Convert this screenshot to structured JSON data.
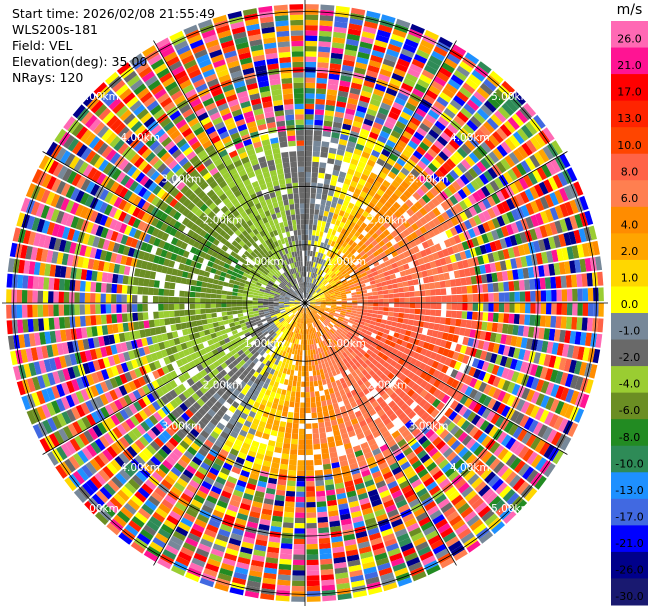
{
  "header": {
    "start_time": "Start time: 2026/02/08 21:55:49",
    "instrument": "WLS200s-181",
    "field": "Field: VEL",
    "elevation": "Elevation(deg): 35.00",
    "nrays": "NRays: 120"
  },
  "chart_data": {
    "type": "heatmap",
    "projection": "polar-ppi",
    "field": "VEL",
    "units": "m/s",
    "n_rays": 120,
    "elevation_deg": 35.0,
    "max_range_km": 5.2,
    "range_rings_km": [
      1,
      2,
      3,
      4,
      5
    ],
    "range_ring_labels": [
      "1.00km",
      "2.00km",
      "3.00km",
      "4.00km",
      "5.00km"
    ],
    "spoke_angles_deg": [
      0,
      30,
      60,
      90,
      120,
      150,
      180,
      210,
      240,
      270,
      300,
      330
    ],
    "colorbar": {
      "unit_label": "m/s",
      "tick_labels": [
        "26.0",
        "21.0",
        "17.0",
        "13.0",
        "10.0",
        "8.0",
        "6.0",
        "4.0",
        "2.0",
        "1.0",
        "0.0",
        "-1.0",
        "-2.0",
        "-4.0",
        "-6.0",
        "-8.0",
        "-10.0",
        "-13.0",
        "-17.0",
        "-21.0",
        "-26.0",
        "-30.0"
      ],
      "colors": [
        "#ff69b4",
        "#ff1493",
        "#ff0000",
        "#ff2400",
        "#ff4500",
        "#ff6347",
        "#ff7f50",
        "#ff8c00",
        "#ffa500",
        "#ffd700",
        "#ffff00",
        "#778899",
        "#696969",
        "#9acd32",
        "#6b8e23",
        "#228b22",
        "#2e8b57",
        "#1e90ff",
        "#4169e1",
        "#0000ff",
        "#00008b",
        "#191970"
      ]
    },
    "velocity_regions": [
      {
        "name": "receding",
        "azimuth_deg": 100,
        "range_km": [
          0.2,
          1.5
        ],
        "vel_ms": 6
      },
      {
        "name": "receding-far",
        "azimuth_deg": 180,
        "range_km": [
          0.5,
          2.5
        ],
        "vel_ms": 3
      },
      {
        "name": "approaching",
        "azimuth_deg": 280,
        "range_km": [
          0.2,
          1.2
        ],
        "vel_ms": -10
      },
      {
        "name": "approaching-far",
        "azimuth_deg": 315,
        "range_km": [
          0.8,
          2.8
        ],
        "vel_ms": -5
      }
    ],
    "noise_beyond_km": 2.6
  }
}
